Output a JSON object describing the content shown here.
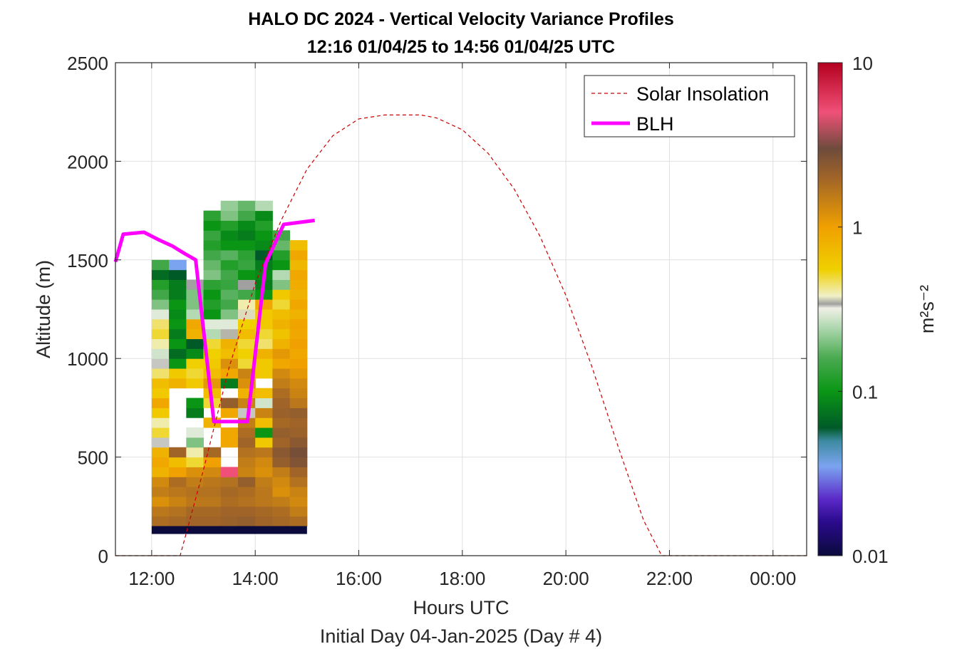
{
  "chart_data": {
    "type": "heatmap",
    "title_line1": "HALO DC 2024 - Vertical Velocity Variance Profiles",
    "title_line2": "12:16 01/04/25 to 14:56 01/04/25  UTC",
    "xlabel": "Hours UTC",
    "xlabel2": "Initial Day 04-Jan-2025 (Day # 4)",
    "ylabel": "Altitude (m)",
    "x_range_hours": [
      11.3,
      24.65
    ],
    "ylim": [
      0,
      2500
    ],
    "x_ticks": [
      {
        "hour": 12,
        "label": "12:00"
      },
      {
        "hour": 14,
        "label": "14:00"
      },
      {
        "hour": 16,
        "label": "16:00"
      },
      {
        "hour": 18,
        "label": "18:00"
      },
      {
        "hour": 20,
        "label": "20:00"
      },
      {
        "hour": 22,
        "label": "22:00"
      },
      {
        "hour": 24,
        "label": "00:00"
      }
    ],
    "y_ticks": [
      {
        "value": 0,
        "label": "0"
      },
      {
        "value": 500,
        "label": "500"
      },
      {
        "value": 1000,
        "label": "1000"
      },
      {
        "value": 1500,
        "label": "1500"
      },
      {
        "value": 2000,
        "label": "2000"
      },
      {
        "value": 2500,
        "label": "2500"
      }
    ],
    "grid": true,
    "legend_position": "top-right",
    "legend": [
      {
        "label": "Solar Insolation",
        "style": "dashed",
        "color": "#cc0000"
      },
      {
        "label": "BLH",
        "style": "solid",
        "color": "#ff00ff"
      }
    ],
    "colorbar": {
      "label": "m²s⁻²",
      "scale": "log",
      "range": [
        0.01,
        10
      ],
      "ticks": [
        {
          "value": 0.01,
          "label": "0.01"
        },
        {
          "value": 0.1,
          "label": "0.1"
        },
        {
          "value": 1,
          "label": "1"
        },
        {
          "value": 10,
          "label": "10"
        }
      ],
      "stops": [
        {
          "v": 0.01,
          "color": "#0a0a3c"
        },
        {
          "v": 0.016,
          "color": "#2a0a8c"
        },
        {
          "v": 0.022,
          "color": "#5a28c8"
        },
        {
          "v": 0.035,
          "color": "#7ba4f0"
        },
        {
          "v": 0.05,
          "color": "#3c8aa0"
        },
        {
          "v": 0.06,
          "color": "#005a28"
        },
        {
          "v": 0.1,
          "color": "#0a9614"
        },
        {
          "v": 0.16,
          "color": "#4aaa50"
        },
        {
          "v": 0.25,
          "color": "#b4dab4"
        },
        {
          "v": 0.32,
          "color": "#f0f0e6"
        },
        {
          "v": 0.34,
          "color": "#a0a0a0"
        },
        {
          "v": 0.38,
          "color": "#f0f0c8"
        },
        {
          "v": 0.55,
          "color": "#f0d000"
        },
        {
          "v": 1,
          "color": "#f0a000"
        },
        {
          "v": 2,
          "color": "#a06428"
        },
        {
          "v": 3,
          "color": "#6e4b3c"
        },
        {
          "v": 5,
          "color": "#f05078"
        },
        {
          "v": 10,
          "color": "#b4001e"
        }
      ]
    },
    "heatmap": {
      "time_bins_hours": [
        12.0,
        12.333,
        12.667,
        13.0,
        13.333,
        13.667,
        14.0,
        14.333,
        14.667
      ],
      "bin_width_hours": 0.333,
      "altitude_bin_m": 50,
      "altitude_min_m": 150,
      "missing": "white",
      "rows_bottom_to_top": [
        [
          1.8,
          1.9,
          2.0,
          2.0,
          2.1,
          2.2,
          2.0,
          1.9,
          1.8
        ],
        [
          1.6,
          1.7,
          1.9,
          1.9,
          2.0,
          2.0,
          1.9,
          1.8,
          1.5
        ],
        [
          1.2,
          1.4,
          1.6,
          1.6,
          1.8,
          1.7,
          1.6,
          1.5,
          1.3
        ],
        [
          1.5,
          1.6,
          1.7,
          1.7,
          1.9,
          1.8,
          1.6,
          1.2,
          1.4
        ],
        [
          1.3,
          1.8,
          1.5,
          1.6,
          1.7,
          2.2,
          1.5,
          1.3,
          1.7
        ],
        [
          0.8,
          1.0,
          1.2,
          1.3,
          5.0,
          1.4,
          1.2,
          1.5,
          2.0
        ],
        [
          0.9,
          0.7,
          0.5,
          1.0,
          null,
          1.5,
          1.3,
          2.2,
          2.6
        ],
        [
          0.8,
          2.0,
          0.4,
          1.9,
          null,
          1.7,
          1.6,
          2.4,
          2.8
        ],
        [
          0.33,
          null,
          0.2,
          null,
          0.9,
          2.0,
          0.6,
          2.0,
          2.4
        ],
        [
          0.5,
          null,
          0.3,
          null,
          0.9,
          1.8,
          0.1,
          2.2,
          2.1
        ],
        [
          0.4,
          null,
          null,
          0.8,
          null,
          1.5,
          0.7,
          1.9,
          2.0
        ],
        [
          0.6,
          null,
          0.08,
          null,
          0.9,
          0.33,
          1.4,
          2.1,
          2.2
        ],
        [
          0.9,
          null,
          0.1,
          0.5,
          2.2,
          1.4,
          0.28,
          2.0,
          1.6
        ],
        [
          0.6,
          null,
          null,
          0.7,
          null,
          0.8,
          0.7,
          1.8,
          1.4
        ],
        [
          0.7,
          0.8,
          0.6,
          1.1,
          0.08,
          1.2,
          null,
          1.5,
          1.3
        ],
        [
          0.45,
          0.6,
          0.5,
          0.7,
          0.9,
          1.4,
          0.6,
          1.3,
          1.1
        ],
        [
          0.33,
          0.1,
          0.55,
          0.6,
          1.2,
          0.5,
          0.6,
          0.9,
          1.0
        ],
        [
          0.28,
          0.07,
          0.09,
          0.55,
          0.7,
          0.55,
          0.8,
          1.1,
          0.9
        ],
        [
          0.4,
          0.1,
          0.06,
          0.5,
          0.8,
          0.5,
          0.45,
          0.8,
          1.0
        ],
        [
          0.5,
          0.08,
          0.8,
          0.25,
          0.35,
          0.7,
          0.5,
          0.65,
          0.9
        ],
        [
          0.45,
          0.1,
          0.9,
          0.3,
          0.3,
          0.55,
          0.6,
          0.8,
          0.95
        ],
        [
          0.3,
          0.09,
          0.25,
          0.1,
          0.2,
          0.37,
          0.6,
          0.7,
          0.8
        ],
        [
          0.2,
          0.1,
          0.2,
          0.12,
          0.15,
          0.4,
          0.9,
          0.5,
          0.9
        ],
        [
          0.15,
          0.08,
          0.2,
          0.1,
          0.17,
          0.15,
          0.1,
          0.6,
          0.8
        ],
        [
          0.12,
          0.08,
          0.34,
          0.13,
          0.14,
          0.34,
          0.08,
          0.2,
          0.85
        ],
        [
          0.07,
          0.06,
          null,
          0.2,
          0.15,
          0.1,
          0.09,
          0.25,
          0.9
        ],
        [
          0.15,
          0.035,
          null,
          0.18,
          0.12,
          0.14,
          0.08,
          0.1,
          0.75
        ],
        [
          null,
          null,
          null,
          0.15,
          0.17,
          0.13,
          0.06,
          0.12,
          0.9
        ],
        [
          null,
          null,
          null,
          0.12,
          0.1,
          0.1,
          0.09,
          0.18,
          0.7
        ],
        [
          null,
          null,
          null,
          0.14,
          0.09,
          0.08,
          0.1,
          0.15,
          null
        ],
        [
          null,
          null,
          null,
          0.1,
          0.12,
          0.09,
          0.12,
          null,
          null
        ],
        [
          null,
          null,
          null,
          0.13,
          0.2,
          0.15,
          0.09,
          null,
          null
        ],
        [
          null,
          null,
          null,
          null,
          0.22,
          0.18,
          0.25,
          null,
          null
        ]
      ],
      "bottom_band_value": 0.01
    },
    "series": [
      {
        "name": "BLH",
        "type": "line",
        "color": "#ff00ff",
        "x_hours": [
          11.3,
          11.45,
          11.85,
          12.15,
          12.4,
          12.65,
          12.85,
          13.2,
          13.45,
          13.85,
          14.2,
          14.55,
          15.15
        ],
        "y": [
          1490,
          1630,
          1640,
          1600,
          1570,
          1530,
          1500,
          680,
          680,
          680,
          1480,
          1680,
          1700
        ]
      },
      {
        "name": "Solar Insolation",
        "type": "line",
        "style": "dashed",
        "color": "#cc0000",
        "x_hours": [
          11.3,
          12.55,
          13.0,
          13.5,
          14.0,
          14.5,
          15.0,
          15.5,
          16.0,
          16.5,
          17.0,
          17.2,
          17.5,
          18.0,
          18.5,
          19.0,
          19.5,
          20.0,
          20.5,
          21.0,
          21.5,
          21.85,
          24.65
        ],
        "y": [
          0,
          0,
          435,
          960,
          1380,
          1700,
          1960,
          2130,
          2215,
          2235,
          2235,
          2235,
          2220,
          2160,
          2040,
          1860,
          1620,
          1320,
          960,
          560,
          180,
          0,
          0
        ]
      }
    ]
  }
}
